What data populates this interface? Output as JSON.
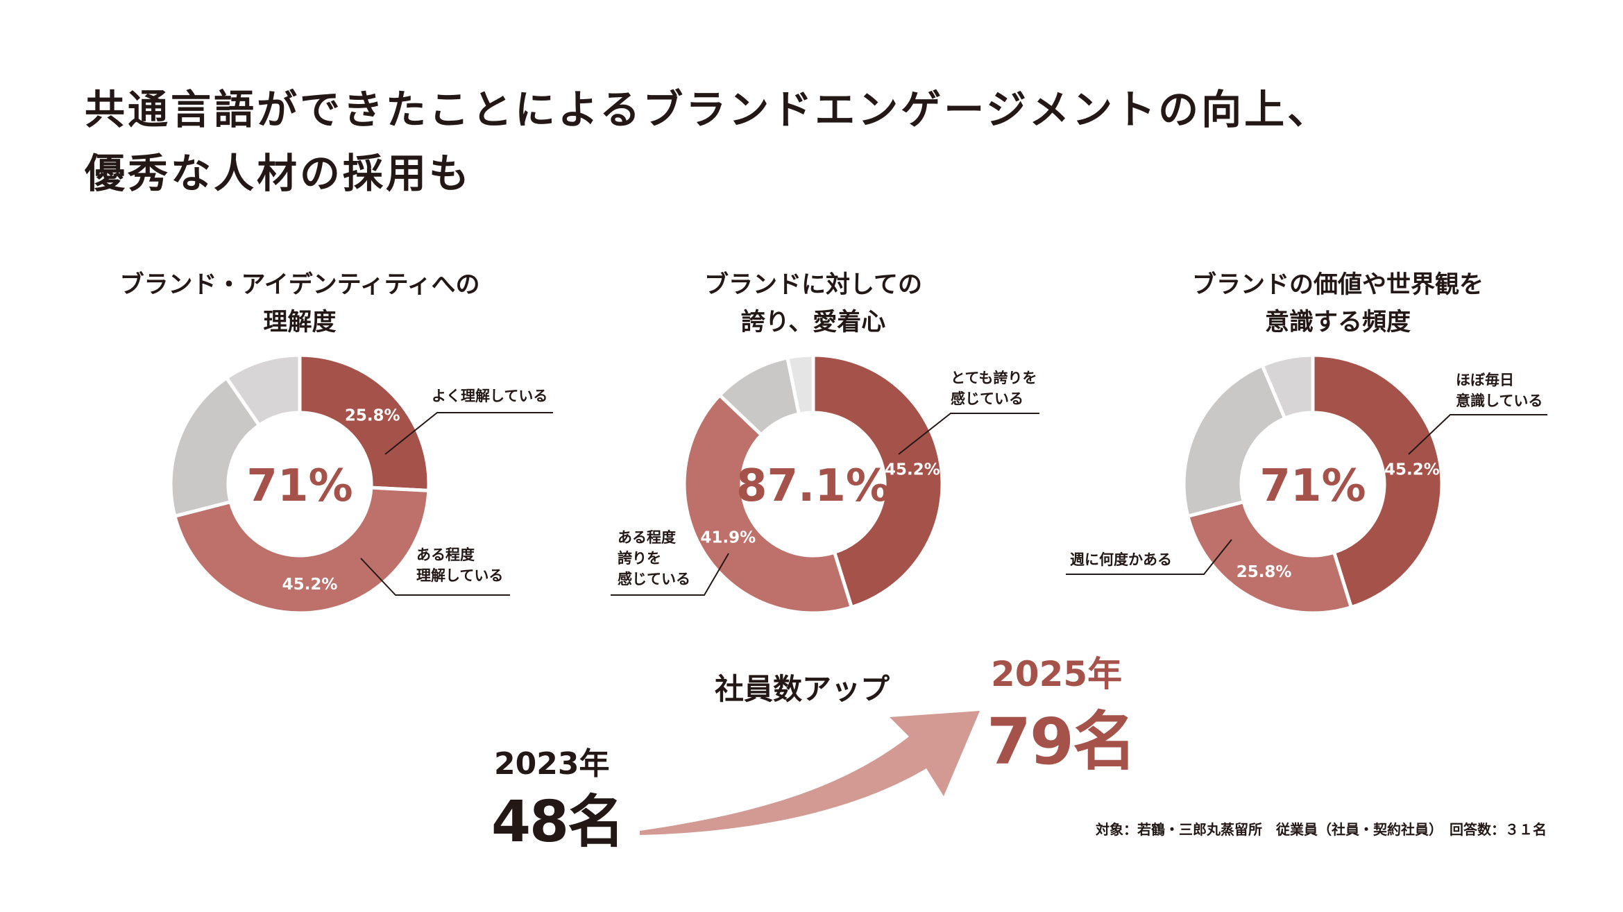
{
  "title": {
    "line1": "共通言語ができたことによるブランドエンゲージメントの向上、",
    "line2": "優秀な人材の採用も"
  },
  "colors": {
    "dark": "#a5524a",
    "medium": "#bd716a",
    "light_gray": "#cac7c7",
    "lighter_gray": "#d7d5d5",
    "lightest_gray": "#e6e5e5",
    "arrow": "#d39a94"
  },
  "chart_data": [
    {
      "type": "pie",
      "variant": "donut",
      "title_line1": "ブランド・アイデンティティへの",
      "title_line2": "理解度",
      "center": "71%",
      "slices": [
        {
          "label": "よく理解している",
          "value": 25.8,
          "display": "25.8%"
        },
        {
          "label": "ある程度理解している",
          "value": 45.2,
          "display": "45.2%"
        },
        {
          "label": "",
          "value": 19.4,
          "display": ""
        },
        {
          "label": "",
          "value": 9.6,
          "display": ""
        }
      ]
    },
    {
      "type": "pie",
      "variant": "donut",
      "title_line1": "ブランドに対しての",
      "title_line2": "誇り、愛着心",
      "center": "87.1%",
      "slices": [
        {
          "label": "とても誇りを感じている",
          "value": 45.2,
          "display": "45.2%"
        },
        {
          "label": "ある程度誇りを感じている",
          "value": 41.9,
          "display": "41.9%"
        },
        {
          "label": "",
          "value": 9.7,
          "display": ""
        },
        {
          "label": "",
          "value": 3.2,
          "display": ""
        }
      ]
    },
    {
      "type": "pie",
      "variant": "donut",
      "title_line1": "ブランドの価値や世界観を",
      "title_line2": "意識する頻度",
      "center": "71%",
      "slices": [
        {
          "label": "ほぼ毎日意識している",
          "value": 45.2,
          "display": "45.2%"
        },
        {
          "label": "週に何度かある",
          "value": 25.8,
          "display": "25.8%"
        },
        {
          "label": "",
          "value": 22.6,
          "display": ""
        },
        {
          "label": "",
          "value": 6.4,
          "display": ""
        }
      ]
    }
  ],
  "callouts": {
    "c1a": "よく理解している",
    "c1b_1": "ある程度",
    "c1b_2": "理解している",
    "c2a_1": "とても誇りを",
    "c2a_2": "感じている",
    "c2b_1": "ある程度",
    "c2b_2": "誇りを",
    "c2b_3": "感じている",
    "c3a_1": "ほぼ毎日",
    "c3a_2": "意識している",
    "c3b": "週に何度かある"
  },
  "employees": {
    "heading": "社員数アップ",
    "from_year": "2023年",
    "from_count": "48名",
    "to_year": "2025年",
    "to_count": "79名"
  },
  "note": "対象：若鶴・三郎丸蒸留所　従業員（社員・契約社員）　回答数：３１名"
}
